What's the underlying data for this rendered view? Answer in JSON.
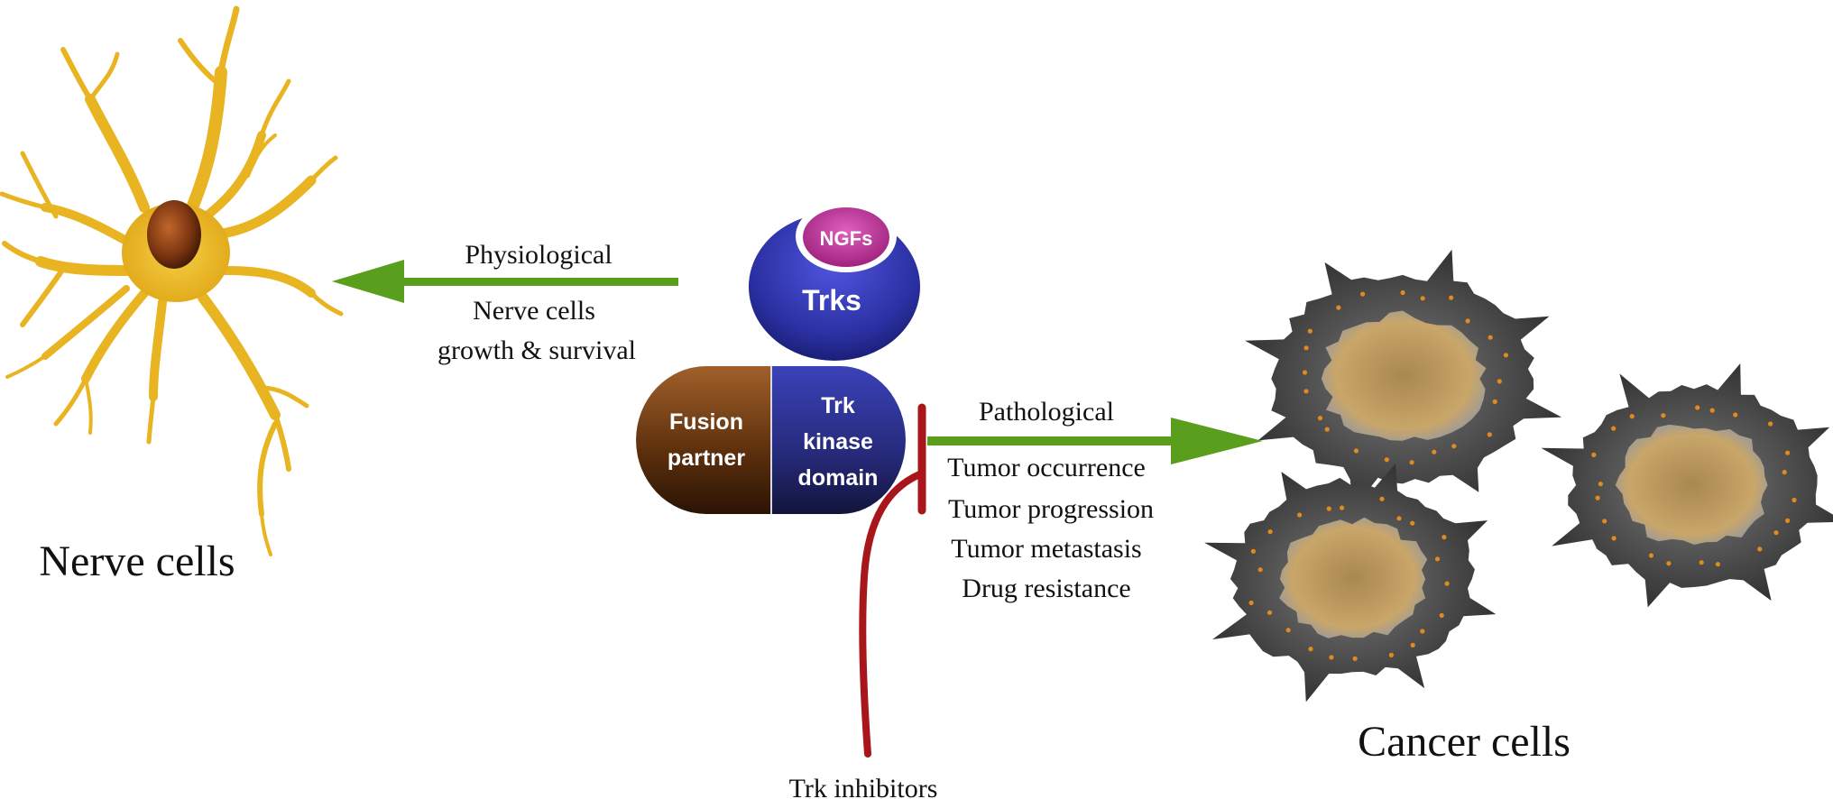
{
  "nerve": {
    "label": "Nerve cells"
  },
  "physiological": {
    "title": "Physiological",
    "line1": "Nerve cells",
    "line2": "growth & survival"
  },
  "receptor": {
    "ligand": "NGFs",
    "receptor": "Trks",
    "fusion_line1": "Fusion",
    "fusion_line2": "partner",
    "kinase_line1": "Trk",
    "kinase_line2": "kinase",
    "kinase_line3": "domain"
  },
  "pathological": {
    "title": "Pathological",
    "items": [
      "Tumor occurrence",
      "Tumor progression",
      "Tumor metastasis",
      "Drug resistance"
    ]
  },
  "inhibitor": {
    "label": "Trk inhibitors"
  },
  "cancer": {
    "label": "Cancer cells"
  },
  "colors": {
    "neuron": "#E8B422",
    "nucleus": "#8B3A10",
    "green_arrow": "#5A9E1E",
    "inhibitor_red": "#A8161B",
    "receptor_blue": "#2A2FA0",
    "ligand_magenta": "#C0308E",
    "fusion_brown": "#6B3A12",
    "cancer_dark": "#4A4A4A",
    "cancer_core": "#B8955A",
    "cancer_dots": "#E08A20"
  }
}
